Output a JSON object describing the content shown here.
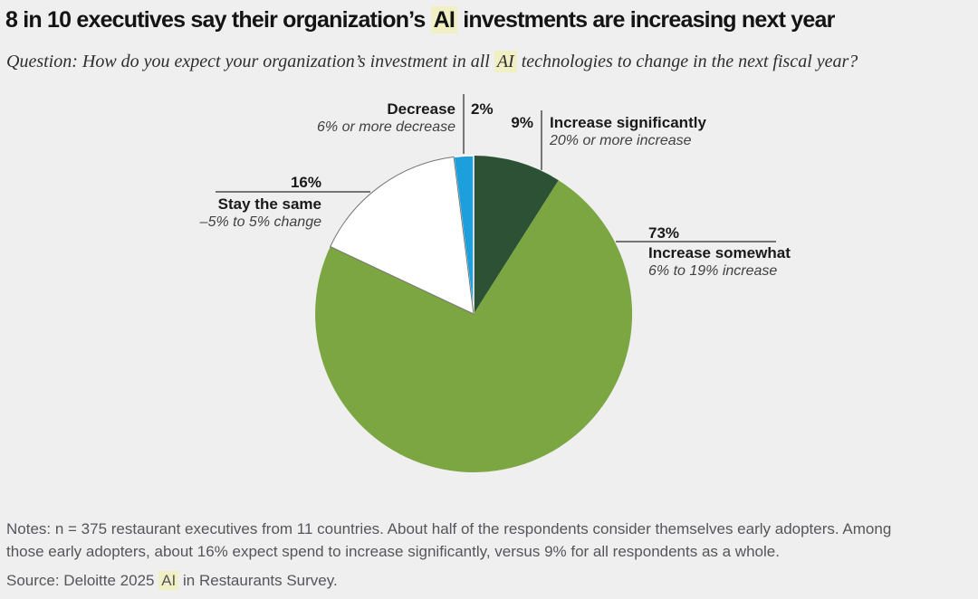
{
  "page": {
    "background": "#efefef",
    "highlight_color": "#f1f0c4",
    "title": {
      "pre": "8 in 10 executives say their organization’s ",
      "highlight": "AI",
      "post": " investments are increasing next year"
    },
    "question": {
      "pre": "Question: How do you expect your organization’s investment in all ",
      "highlight": "AI",
      "post": " technologies to change in the next fiscal year?"
    },
    "notes": "Notes: n = 375 restaurant executives from 11 countries. About half of the respondents consider themselves early adopters. Among those early adopters, about 16% expect spend to increase significantly, versus 9% for all respondents as a whole.",
    "source": {
      "pre": "Source: Deloitte 2025 ",
      "highlight": "AI",
      "post": " in Restaurants Survey."
    }
  },
  "chart_data": {
    "type": "pie",
    "title": "8 in 10 executives say their organization’s AI investments are increasing next year",
    "question": "How do you expect your organization’s investment in all AI technologies to change in the next fiscal year?",
    "direction": "clockwise",
    "start_angle_deg": 0,
    "legend_position": "callout-labels",
    "segments": [
      {
        "id": "increase-significantly",
        "label": "Increase significantly",
        "sublabel": "20% or more increase",
        "value": 9,
        "pct": "9%",
        "color": "#2d5134"
      },
      {
        "id": "increase-somewhat",
        "label": "Increase somewhat",
        "sublabel": "6% to 19% increase",
        "value": 73,
        "pct": "73%",
        "color": "#7ca642"
      },
      {
        "id": "stay-the-same",
        "label": "Stay the same",
        "sublabel": "–5% to 5% change",
        "value": 16,
        "pct": "16%",
        "color": "#ffffff"
      },
      {
        "id": "decrease",
        "label": "Decrease",
        "sublabel": "6% or more decrease",
        "value": 2,
        "pct": "2%",
        "color": "#1c9fdb"
      }
    ]
  }
}
